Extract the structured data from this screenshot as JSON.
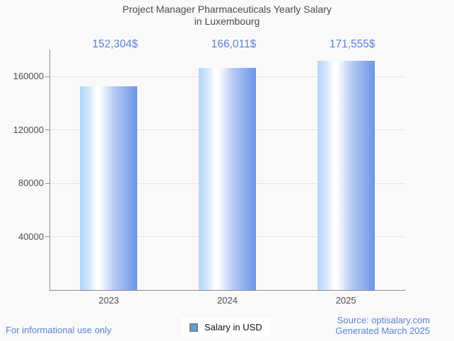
{
  "chart_data": {
    "type": "bar",
    "title": "Project Manager Pharmaceuticals Yearly Salary\nin Luxembourg",
    "categories": [
      "2023",
      "2024",
      "2025"
    ],
    "values": [
      152304,
      166011,
      171555
    ],
    "value_labels": [
      "152,304$",
      "166,011$",
      "171,555$"
    ],
    "xlabel": "",
    "ylabel": "",
    "ylim": [
      0,
      173000
    ],
    "yticks": [
      40000,
      80000,
      120000,
      160000
    ],
    "grid": true,
    "legend": {
      "label": "Salary in USD",
      "position": "bottom-center"
    }
  },
  "footer": {
    "disclaimer": "For informational use only",
    "source_line1": "Source: optisalary.com",
    "source_line2": "Generated March 2025"
  },
  "colors": {
    "background": "#f9f9f9",
    "title_text": "#4a4a4a",
    "axis_text": "#4f4f4f",
    "accent_blue_text": "#5c82d8",
    "axis_line": "#8c8c8c",
    "gridline": "#e4e4e4",
    "bar_light_edge": "#b2d5f8",
    "bar_highlight": "#ffffff",
    "bar_dark_edge": "#6d95e8",
    "legend_marker_fill": "#58a0e8",
    "legend_marker_border": "#7e7e7e"
  }
}
